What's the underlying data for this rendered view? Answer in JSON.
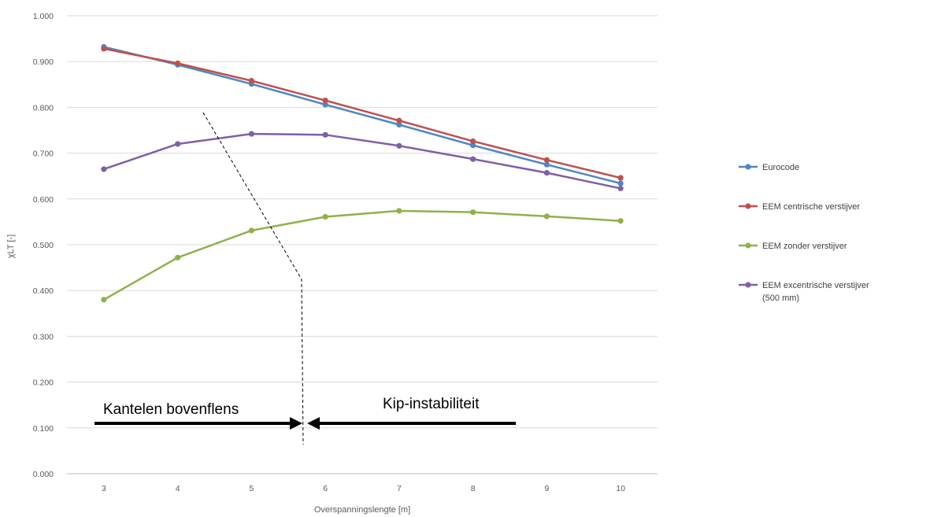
{
  "chart_data": {
    "type": "line",
    "xlabel": "Overspanningslengte [m]",
    "ylabel": "χLT [-]",
    "ylim": [
      0,
      1
    ],
    "x": [
      3,
      4,
      5,
      6,
      7,
      8,
      9,
      10
    ],
    "y_ticks": [
      "0.000",
      "0.100",
      "0.200",
      "0.300",
      "0.400",
      "0.500",
      "0.600",
      "0.700",
      "0.800",
      "0.900",
      "1.000"
    ],
    "grid": true,
    "legend_position": "right",
    "series": [
      {
        "name": "Eurocode",
        "color": "#4e86c6",
        "values": [
          0.932,
          0.893,
          0.851,
          0.806,
          0.762,
          0.717,
          0.675,
          0.634
        ]
      },
      {
        "name": "EEM centrische verstijver",
        "color": "#c0504d",
        "values": [
          0.928,
          0.896,
          0.858,
          0.815,
          0.771,
          0.726,
          0.685,
          0.646
        ]
      },
      {
        "name": "EEM zonder verstijver",
        "color": "#8db24a",
        "values": [
          0.38,
          0.472,
          0.531,
          0.561,
          0.574,
          0.571,
          0.562,
          0.552
        ]
      },
      {
        "name": "EEM excentrische verstijver (500 mm)",
        "color": "#7f5fa8",
        "values": [
          0.665,
          0.72,
          0.742,
          0.74,
          0.716,
          0.687,
          0.657,
          0.623
        ]
      }
    ],
    "annotations": {
      "left_label": "Kantelen bovenflens",
      "right_label": "Kip-instabiliteit"
    }
  }
}
